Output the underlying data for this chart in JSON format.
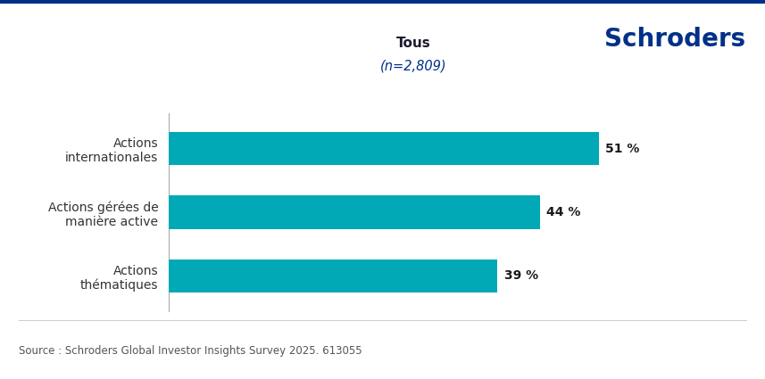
{
  "categories": [
    "Actions\nthématiques",
    "Actions gérées de\nmanière active",
    "Actions\ninternationales"
  ],
  "values": [
    39,
    44,
    51
  ],
  "labels": [
    "39 %",
    "44 %",
    "51 %"
  ],
  "bar_color": "#00A9B5",
  "background_color": "#FFFFFF",
  "border_color": "#003087",
  "title_line1": "Tous",
  "title_line2": "(n=2,809)",
  "source_text": "Source : Schroders Global Investor Insights Survey 2025. 613055",
  "schroders_text": "Schroders",
  "schroders_color": "#003087",
  "title_color": "#1a1a2e",
  "subtitle_color": "#003087",
  "xlim": [
    0,
    58
  ],
  "title_fontsize": 11,
  "label_fontsize": 10,
  "tick_fontsize": 10,
  "source_fontsize": 8.5,
  "schroders_fontsize": 20,
  "bar_height": 0.52
}
